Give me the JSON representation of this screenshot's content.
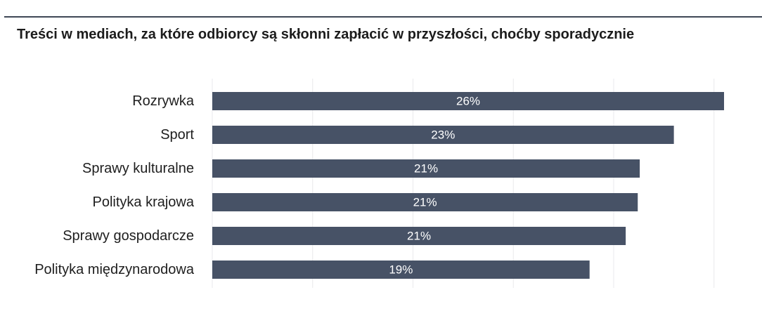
{
  "chart_data": {
    "type": "bar",
    "orientation": "horizontal",
    "title": "Treści w mediach, za które odbiorcy są skłonni zapłacić w przyszłości, choćby sporadycznie",
    "categories": [
      "Rozrywka",
      "Sport",
      "Sprawy kulturalne",
      "Polityka krajowa",
      "Sprawy gospodarcze",
      "Polityka międzynarodowa"
    ],
    "values": [
      26,
      23,
      21,
      21,
      21,
      19
    ],
    "value_labels": [
      "26%",
      "23%",
      "21%",
      "21%",
      "21%",
      "19%"
    ],
    "value_plotted": [
      25.5,
      23.0,
      21.3,
      21.2,
      20.6,
      18.8
    ],
    "xlim": [
      0,
      25.5
    ],
    "grid": true,
    "legend": "none",
    "bar_color": "#475266"
  }
}
